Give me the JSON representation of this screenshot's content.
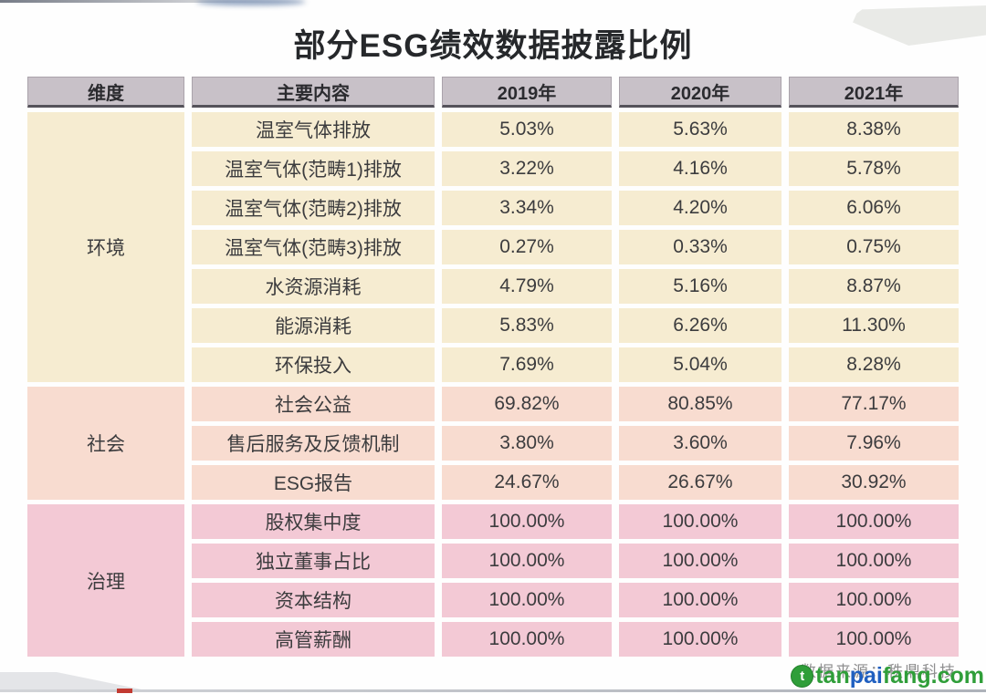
{
  "title": "部分ESG绩效数据披露比例",
  "chart_data": {
    "type": "table",
    "title": "部分ESG绩效数据披露比例",
    "headers": [
      "维度",
      "主要内容",
      "2019年",
      "2020年",
      "2021年"
    ],
    "sections": [
      {
        "dimension": "环境",
        "color": "#f6ecd1",
        "rows": [
          {
            "label": "温室气体排放",
            "values": [
              "5.03%",
              "5.63%",
              "8.38%"
            ]
          },
          {
            "label": "温室气体(范畴1)排放",
            "values": [
              "3.22%",
              "4.16%",
              "5.78%"
            ]
          },
          {
            "label": "温室气体(范畴2)排放",
            "values": [
              "3.34%",
              "4.20%",
              "6.06%"
            ]
          },
          {
            "label": "温室气体(范畴3)排放",
            "values": [
              "0.27%",
              "0.33%",
              "0.75%"
            ]
          },
          {
            "label": "水资源消耗",
            "values": [
              "4.79%",
              "5.16%",
              "8.87%"
            ]
          },
          {
            "label": "能源消耗",
            "values": [
              "5.83%",
              "6.26%",
              "11.30%"
            ]
          },
          {
            "label": "环保投入",
            "values": [
              "7.69%",
              "5.04%",
              "8.28%"
            ]
          }
        ]
      },
      {
        "dimension": "社会",
        "color": "#f8dcd0",
        "rows": [
          {
            "label": "社会公益",
            "values": [
              "69.82%",
              "80.85%",
              "77.17%"
            ]
          },
          {
            "label": "售后服务及反馈机制",
            "values": [
              "3.80%",
              "3.60%",
              "7.96%"
            ]
          },
          {
            "label": "ESG报告",
            "values": [
              "24.67%",
              "26.67%",
              "30.92%"
            ]
          }
        ]
      },
      {
        "dimension": "治理",
        "color": "#f3c9d5",
        "rows": [
          {
            "label": "股权集中度",
            "values": [
              "100.00%",
              "100.00%",
              "100.00%"
            ]
          },
          {
            "label": "独立董事占比",
            "values": [
              "100.00%",
              "100.00%",
              "100.00%"
            ]
          },
          {
            "label": "资本结构",
            "values": [
              "100.00%",
              "100.00%",
              "100.00%"
            ]
          },
          {
            "label": "高管薪酬",
            "values": [
              "100.00%",
              "100.00%",
              "100.00%"
            ]
          }
        ]
      }
    ]
  },
  "footer": {
    "source_text": "数据来源：秩鼎科技",
    "watermark_logo_letter": "t",
    "watermark_parts": [
      {
        "text": "tan",
        "color": "#2f9e39"
      },
      {
        "text": "pai",
        "color": "#1f5fc0"
      },
      {
        "text": "fang",
        "color": "#2f9e39"
      },
      {
        "text": ".com",
        "color": "#2f9e39"
      }
    ]
  },
  "colors": {
    "header_bg": "#c8c1c8",
    "header_border": "#55525a",
    "env_section": "#f6ecd1",
    "social_section": "#f8dcd0",
    "gov_section": "#f3c9d5",
    "progress_red": "#c23a31",
    "watermark_green": "#2f9e39",
    "watermark_blue": "#1f5fc0"
  }
}
